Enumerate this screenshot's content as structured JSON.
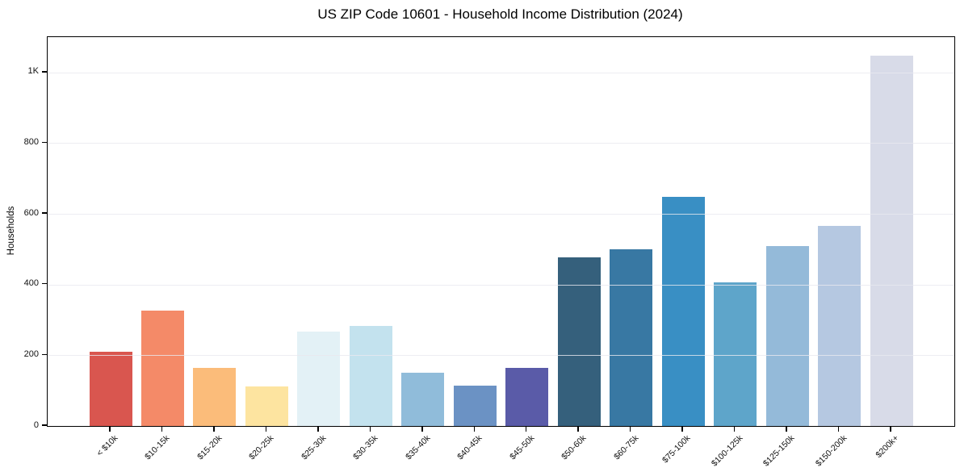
{
  "chart_data": {
    "type": "bar",
    "title": "US ZIP Code 10601 - Household Income Distribution (2024)",
    "xlabel": "",
    "ylabel": "Households",
    "categories": [
      "< $10k",
      "$10-15k",
      "$15-20k",
      "$20-25k",
      "$25-30k",
      "$30-35k",
      "$35-40k",
      "$40-45k",
      "$45-50k",
      "$50-60k",
      "$60-75k",
      "$75-100k",
      "$100-125k",
      "$125-150k",
      "$150-200k",
      "$200k+"
    ],
    "values": [
      210,
      327,
      164,
      112,
      268,
      283,
      151,
      114,
      164,
      476,
      499,
      648,
      406,
      510,
      567,
      1047
    ],
    "bar_colors": [
      "#d9564f",
      "#f48a68",
      "#fbbc7a",
      "#fde4a0",
      "#e3f1f6",
      "#c3e2ee",
      "#90bcda",
      "#6b92c4",
      "#5a5ba8",
      "#35607c",
      "#3878a3",
      "#398fc4",
      "#5ea5ca",
      "#94bad9",
      "#b5c8e1",
      "#d8dbe8"
    ],
    "ylim": [
      0,
      1100
    ],
    "yticks": [
      {
        "value": 0,
        "label": "0"
      },
      {
        "value": 200,
        "label": "200"
      },
      {
        "value": 400,
        "label": "400"
      },
      {
        "value": 600,
        "label": "600"
      },
      {
        "value": 800,
        "label": "800"
      },
      {
        "value": 1000,
        "label": "1K"
      }
    ],
    "grid": "horizontal-only",
    "legend": "none",
    "grid_color": "#e9e9ef",
    "spine_color": "#000000",
    "background_color": "#ffffff"
  }
}
